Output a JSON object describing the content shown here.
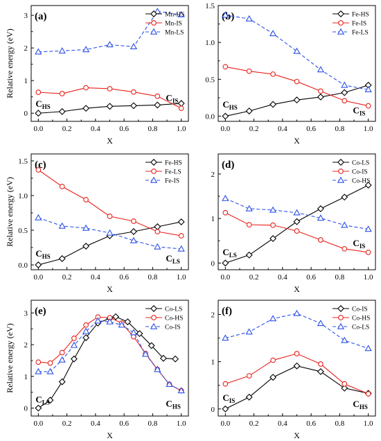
{
  "chart_data": [
    {
      "type": "line",
      "panel_label": "(a)",
      "xlabel": "X",
      "ylabel": "Relative energy (eV)",
      "xlim": [
        -0.05,
        1.05
      ],
      "ylim": [
        -0.25,
        3.3
      ],
      "x_ticks": [
        "0.0",
        "0.2",
        "0.4",
        "0.6",
        "0.8",
        "1.0"
      ],
      "y_ticks": [
        "0",
        "1",
        "2",
        "3"
      ],
      "legend_position": "top-right",
      "series": [
        {
          "name": "Mn-HS",
          "color": "#000000",
          "marker": "diamond",
          "dashed": false,
          "x": [
            0,
            0.1667,
            0.3333,
            0.5,
            0.6667,
            0.8333,
            1.0
          ],
          "y": [
            0,
            0.05,
            0.15,
            0.21,
            0.23,
            0.25,
            0.3
          ]
        },
        {
          "name": "Mn-IS",
          "color": "#e8201a",
          "marker": "circle",
          "dashed": false,
          "x": [
            0,
            0.1667,
            0.3333,
            0.5,
            0.6667,
            0.8333,
            1.0
          ],
          "y": [
            0.64,
            0.6,
            0.78,
            0.75,
            0.65,
            0.52,
            0.15
          ]
        },
        {
          "name": "Mn-LS",
          "color": "#2b50e8",
          "marker": "triangle",
          "dashed": true,
          "x": [
            0,
            0.1667,
            0.3333,
            0.5,
            0.6667,
            0.8333,
            1.0
          ],
          "y": [
            1.88,
            1.91,
            1.95,
            2.1,
            2.04,
            3.12,
            3.02
          ]
        }
      ],
      "annotations": [
        {
          "main": "C",
          "sub": "HS",
          "x": 0.0,
          "y": 0.2
        },
        {
          "main": "C",
          "sub": "IS",
          "x": 0.96,
          "y": 0.38
        }
      ]
    },
    {
      "type": "line",
      "panel_label": "(b)",
      "xlabel": "X",
      "ylabel": "",
      "xlim": [
        -0.05,
        1.05
      ],
      "ylim": [
        -0.07,
        1.5
      ],
      "x_ticks": [
        "0.0",
        "0.2",
        "0.4",
        "0.6",
        "0.8",
        "1.0"
      ],
      "y_ticks": [
        "0.0",
        "0.5",
        "1.0",
        "1.5"
      ],
      "legend_position": "top-right",
      "series": [
        {
          "name": "Fe-HS",
          "color": "#000000",
          "marker": "diamond",
          "dashed": false,
          "x": [
            0,
            0.1667,
            0.3333,
            0.5,
            0.6667,
            0.8333,
            1.0
          ],
          "y": [
            0,
            0.07,
            0.16,
            0.22,
            0.26,
            0.32,
            0.42
          ]
        },
        {
          "name": "Fe-IS",
          "color": "#e8201a",
          "marker": "circle",
          "dashed": false,
          "x": [
            0,
            0.1667,
            0.3333,
            0.5,
            0.6667,
            0.8333,
            1.0
          ],
          "y": [
            0.67,
            0.61,
            0.57,
            0.47,
            0.34,
            0.21,
            0.14
          ]
        },
        {
          "name": "Fe-LS",
          "color": "#2b50e8",
          "marker": "triangle",
          "dashed": true,
          "x": [
            0,
            0.1667,
            0.3333,
            0.5,
            0.6667,
            0.8333,
            1.0
          ],
          "y": [
            1.37,
            1.32,
            1.12,
            0.88,
            0.63,
            0.42,
            0.36
          ]
        }
      ],
      "annotations": [
        {
          "main": "C",
          "sub": "HS",
          "x": 0.0,
          "y": 0.12
        },
        {
          "main": "C",
          "sub": "IS",
          "x": 0.96,
          "y": 0.04
        }
      ]
    },
    {
      "type": "line",
      "panel_label": "(c)",
      "xlabel": "X",
      "ylabel": "Relative energy (eV)",
      "xlim": [
        -0.05,
        1.05
      ],
      "ylim": [
        -0.07,
        1.6
      ],
      "x_ticks": [
        "0.0",
        "0.2",
        "0.4",
        "0.6",
        "0.8",
        "1.0"
      ],
      "y_ticks": [
        "0.0",
        "0.5",
        "1.0",
        "1.5"
      ],
      "legend_position": "top-right",
      "series": [
        {
          "name": "Fe-HS",
          "color": "#000000",
          "marker": "diamond",
          "dashed": false,
          "x": [
            0,
            0.1667,
            0.3333,
            0.5,
            0.6667,
            0.8333,
            1.0
          ],
          "y": [
            0,
            0.09,
            0.27,
            0.42,
            0.48,
            0.55,
            0.62
          ]
        },
        {
          "name": "Fe-LS",
          "color": "#e8201a",
          "marker": "circle",
          "dashed": false,
          "x": [
            0,
            0.1667,
            0.3333,
            0.5,
            0.6667,
            0.8333,
            1.0
          ],
          "y": [
            1.37,
            1.13,
            0.94,
            0.7,
            0.63,
            0.48,
            0.42
          ]
        },
        {
          "name": "Fe-IS",
          "color": "#2b50e8",
          "marker": "triangle",
          "dashed": true,
          "x": [
            0,
            0.1667,
            0.3333,
            0.5,
            0.6667,
            0.8333,
            1.0
          ],
          "y": [
            0.68,
            0.56,
            0.53,
            0.46,
            0.35,
            0.26,
            0.23
          ]
        }
      ],
      "annotations": [
        {
          "main": "C",
          "sub": "HS",
          "x": 0.0,
          "y": 0.12
        },
        {
          "main": "C",
          "sub": "LS",
          "x": 0.96,
          "y": 0.05
        }
      ]
    },
    {
      "type": "line",
      "panel_label": "(d)",
      "xlabel": "X",
      "ylabel": "",
      "xlim": [
        -0.05,
        1.05
      ],
      "ylim": [
        -0.15,
        2.45
      ],
      "x_ticks": [
        "0.0",
        "0.2",
        "0.4",
        "0.6",
        "0.8",
        "1.0"
      ],
      "y_ticks": [
        "0",
        "1",
        "2"
      ],
      "legend_position": "top-right",
      "series": [
        {
          "name": "Co-LS",
          "color": "#000000",
          "marker": "diamond",
          "dashed": false,
          "x": [
            0,
            0.1667,
            0.3333,
            0.5,
            0.6667,
            0.8333,
            1.0
          ],
          "y": [
            0,
            0.18,
            0.55,
            0.93,
            1.22,
            1.48,
            1.75
          ]
        },
        {
          "name": "Co-IS",
          "color": "#e8201a",
          "marker": "circle",
          "dashed": false,
          "x": [
            0,
            0.1667,
            0.3333,
            0.5,
            0.6667,
            0.8333,
            1.0
          ],
          "y": [
            1.13,
            0.86,
            0.85,
            0.72,
            0.52,
            0.32,
            0.24
          ]
        },
        {
          "name": "Co-HS",
          "color": "#2b50e8",
          "marker": "triangle",
          "dashed": true,
          "x": [
            0,
            0.1667,
            0.3333,
            0.5,
            0.6667,
            0.8333,
            1.0
          ],
          "y": [
            1.45,
            1.22,
            1.19,
            1.13,
            1.01,
            0.85,
            0.76
          ]
        }
      ],
      "annotations": [
        {
          "main": "C",
          "sub": "LS",
          "x": 0.0,
          "y": 0.18
        },
        {
          "main": "C",
          "sub": "IS",
          "x": 0.96,
          "y": 0.38
        }
      ]
    },
    {
      "type": "line",
      "panel_label": "(e)",
      "xlabel": "X",
      "ylabel": "Relative energy (eV)",
      "xlim": [
        -0.05,
        1.05
      ],
      "ylim": [
        -0.25,
        3.4
      ],
      "x_ticks": [
        "0.0",
        "0.2",
        "0.4",
        "0.6",
        "0.8",
        "1.0"
      ],
      "y_ticks": [
        "0",
        "1",
        "2",
        "3"
      ],
      "legend_position": "top-right",
      "series": [
        {
          "name": "Co-LS",
          "color": "#000000",
          "marker": "diamond",
          "dashed": false,
          "x": [
            0,
            0.0833,
            0.1667,
            0.25,
            0.3333,
            0.4167,
            0.5,
            0.5417,
            0.625,
            0.7083,
            0.7917,
            0.875,
            0.9583
          ],
          "y": [
            0,
            0.25,
            0.83,
            1.55,
            2.22,
            2.68,
            2.83,
            2.88,
            2.72,
            2.35,
            1.97,
            1.57,
            1.55
          ]
        },
        {
          "name": "Co-HS",
          "color": "#e8201a",
          "marker": "circle",
          "dashed": false,
          "x": [
            0,
            0.0833,
            0.1667,
            0.25,
            0.3333,
            0.4167,
            0.5,
            0.5833,
            0.6667,
            0.75,
            0.8333,
            0.9167,
            1.0
          ],
          "y": [
            1.45,
            1.42,
            1.75,
            2.2,
            2.62,
            2.87,
            2.85,
            2.68,
            2.25,
            1.72,
            1.22,
            0.75,
            0.55
          ]
        },
        {
          "name": "Co-IS",
          "color": "#2b50e8",
          "marker": "triangle",
          "dashed": true,
          "x": [
            0,
            0.0833,
            0.1667,
            0.25,
            0.3333,
            0.4167,
            0.5,
            0.5833,
            0.6667,
            0.75,
            0.8333,
            0.9167,
            1.0
          ],
          "y": [
            1.15,
            1.15,
            1.52,
            1.98,
            2.42,
            2.75,
            2.72,
            2.62,
            2.38,
            1.7,
            1.22,
            0.75,
            0.55
          ]
        }
      ],
      "annotations": [
        {
          "main": "C",
          "sub": "LS",
          "x": 0.0,
          "y": 0.18
        },
        {
          "main": "C",
          "sub": "HS",
          "x": 0.96,
          "y": 0.05
        }
      ]
    },
    {
      "type": "line",
      "panel_label": "(f)",
      "xlabel": "X",
      "ylabel": "",
      "xlim": [
        -0.05,
        1.05
      ],
      "ylim": [
        -0.15,
        2.3
      ],
      "x_ticks": [
        "0.0",
        "0.2",
        "0.4",
        "0.6",
        "0.8",
        "1.0"
      ],
      "y_ticks": [
        "0",
        "1",
        "2"
      ],
      "legend_position": "top-right",
      "series": [
        {
          "name": "Co-IS",
          "color": "#000000",
          "marker": "diamond",
          "dashed": false,
          "x": [
            0,
            0.1667,
            0.3333,
            0.5,
            0.6667,
            0.8333,
            1.0
          ],
          "y": [
            0,
            0.25,
            0.67,
            0.91,
            0.79,
            0.44,
            0.33
          ]
        },
        {
          "name": "Co-HS",
          "color": "#e8201a",
          "marker": "circle",
          "dashed": false,
          "x": [
            0,
            0.1667,
            0.3333,
            0.5,
            0.6667,
            0.8333,
            1.0
          ],
          "y": [
            0.53,
            0.7,
            1.03,
            1.17,
            0.95,
            0.53,
            0.32
          ]
        },
        {
          "name": "Co-LS",
          "color": "#2b50e8",
          "marker": "triangle",
          "dashed": true,
          "x": [
            0,
            0.1667,
            0.3333,
            0.5,
            0.6667,
            0.8333,
            1.0
          ],
          "y": [
            1.5,
            1.63,
            1.91,
            2.02,
            1.81,
            1.45,
            1.28
          ]
        }
      ],
      "annotations": [
        {
          "main": "C",
          "sub": "IS",
          "x": 0.0,
          "y": 0.17
        },
        {
          "main": "C",
          "sub": "HS",
          "x": 0.96,
          "y": 0.04
        }
      ]
    }
  ]
}
